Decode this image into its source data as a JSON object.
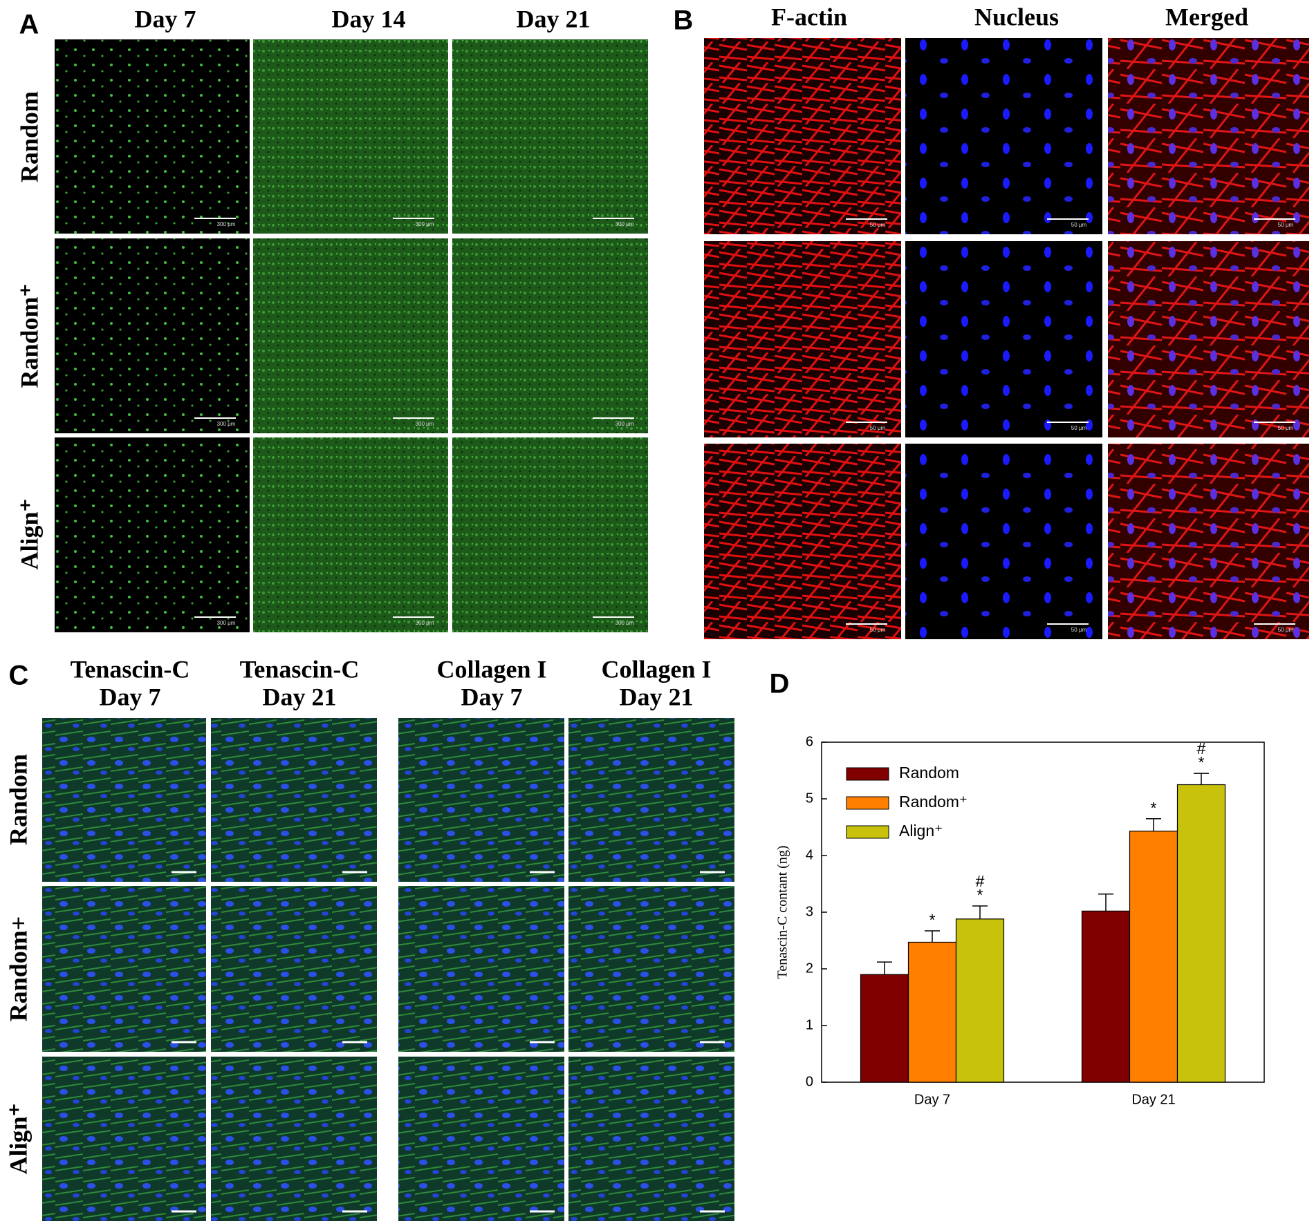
{
  "panels": {
    "A": {
      "label": "A",
      "columns": [
        "Day 7",
        "Day 14",
        "Day 21"
      ],
      "rows": [
        "Random",
        "Random⁺",
        "Align⁺"
      ],
      "scale_bar": "300 μm"
    },
    "B": {
      "label": "B",
      "columns": [
        "F-actin",
        "Nucleus",
        "Merged"
      ],
      "scale_bar": "50 μm"
    },
    "C": {
      "label": "C",
      "columns": [
        [
          "Tenascin-C",
          "Day 7"
        ],
        [
          "Tenascin-C",
          "Day 21"
        ],
        [
          "Collagen I",
          "Day 7"
        ],
        [
          "Collagen I",
          "Day 21"
        ]
      ],
      "rows": [
        "Random",
        "Random+",
        "Align⁺"
      ]
    },
    "D": {
      "label": "D"
    }
  },
  "chart_data": {
    "type": "bar",
    "ylabel": "Tenascin-C contant (ng)",
    "categories": [
      "Day 7",
      "Day 21"
    ],
    "series": [
      {
        "name": "Random",
        "color": "#800000",
        "values": [
          1.9,
          3.02
        ],
        "errors": [
          0.22,
          0.3
        ],
        "significance": [
          [],
          []
        ]
      },
      {
        "name": "Random⁺",
        "color": "#ff8000",
        "values": [
          2.47,
          4.43
        ],
        "errors": [
          0.2,
          0.22
        ],
        "significance": [
          [
            "*"
          ],
          [
            "*"
          ]
        ]
      },
      {
        "name": "Align⁺",
        "color": "#c8c20c",
        "values": [
          2.88,
          5.25
        ],
        "errors": [
          0.23,
          0.2
        ],
        "significance": [
          [
            "#",
            "*"
          ],
          [
            "#",
            "*"
          ]
        ]
      }
    ],
    "ylim": [
      0,
      6
    ],
    "yticks": [
      0,
      1,
      2,
      3,
      4,
      5,
      6
    ]
  }
}
